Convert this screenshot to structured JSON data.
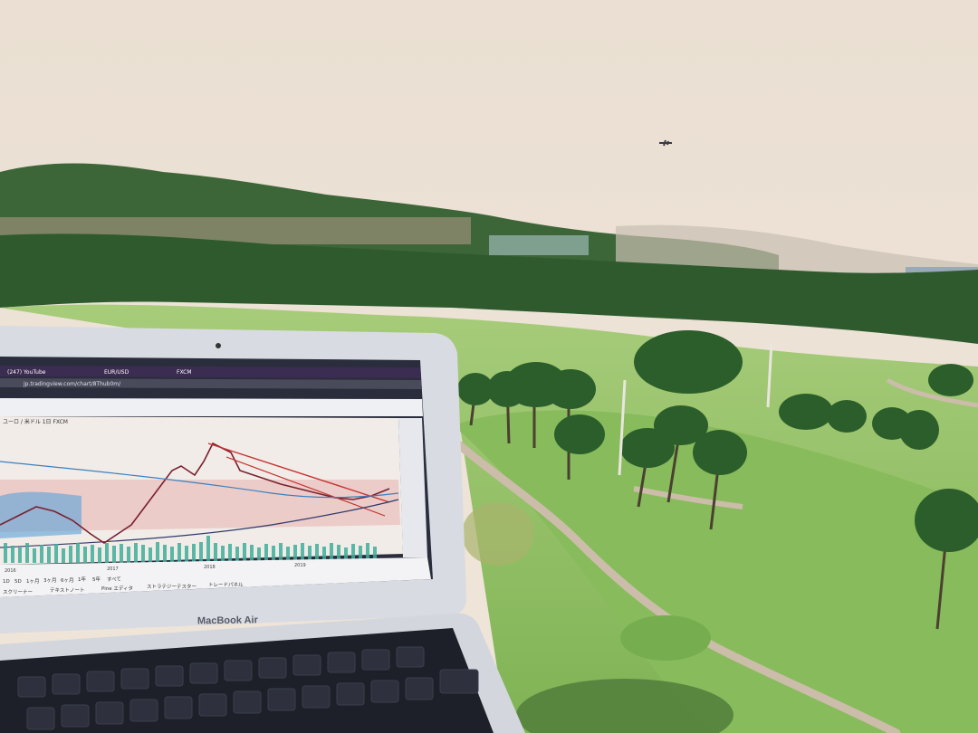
{
  "scene": {
    "description_label": "",
    "colors": {
      "sky": "#ece0d3",
      "hills": "#3f6a3a",
      "fairway": "#8fbf63",
      "path": "#c9b9a8",
      "laptop_body": "#d6d8df",
      "screen_bg": "#2b2f3f"
    }
  },
  "laptop": {
    "brand_label": "MacBook Air",
    "browser": {
      "tabs": [
        "(247) YouTube",
        "EUR/USD",
        "FXCM"
      ],
      "url": "jp.tradingview.com/chart/8Thub0m/",
      "symbol": "ユーロ / 米ドル 1日 FXCM"
    },
    "chart_footer": {
      "year_labels": [
        "2016",
        "2017",
        "2018",
        "2019"
      ],
      "bottom_bar": [
        "スクリーナー",
        "テキストノート",
        "Pine エディタ",
        "ストラテジーテスター",
        "トレードパネル"
      ]
    },
    "timeframes": [
      "1D",
      "5D",
      "1ヶ月",
      "3ヶ月",
      "6ヶ月",
      "1年",
      "5年",
      "すべて"
    ]
  },
  "icons": {
    "airplane": "airplane-icon",
    "camera": "camera-icon"
  }
}
